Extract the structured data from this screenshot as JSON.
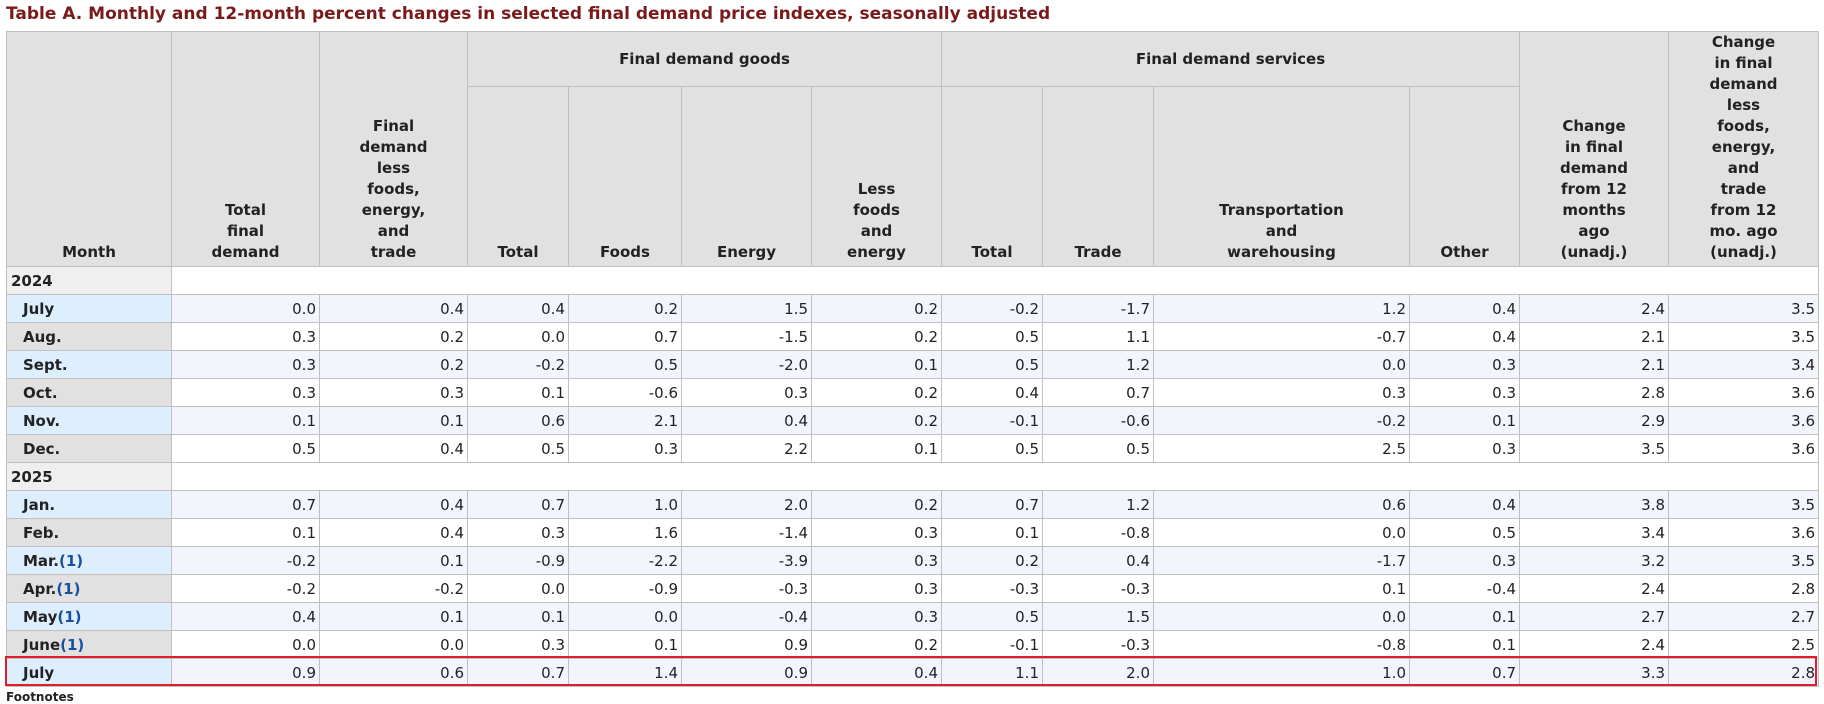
{
  "title": "Table A. Monthly and 12-month percent changes in selected final demand price indexes, seasonally adjusted",
  "headers": {
    "month": "Month",
    "total_final_demand": [
      "Total",
      "final",
      "demand"
    ],
    "fd_less": [
      "Final",
      "demand",
      "less",
      "foods,",
      "energy,",
      "and",
      "trade"
    ],
    "goods_group": "Final demand goods",
    "services_group": "Final demand services",
    "goods_total": "Total",
    "goods_foods": "Foods",
    "goods_energy": "Energy",
    "goods_less": [
      "Less",
      "foods",
      "and",
      "energy"
    ],
    "svc_total": "Total",
    "svc_trade": "Trade",
    "svc_transport": [
      "Transportation",
      "and",
      "warehousing"
    ],
    "svc_other": "Other",
    "change_12": [
      "Change",
      "in final",
      "demand",
      "from 12",
      "months",
      "ago",
      "(unadj.)"
    ],
    "change_less_12": [
      "Change",
      "in final",
      "demand",
      "less",
      "foods,",
      "energy,",
      "and",
      "trade",
      "from 12",
      "mo. ago",
      "(unadj.)"
    ]
  },
  "years": [
    "2024",
    "2025"
  ],
  "rows_2024": [
    {
      "month": "July",
      "fn": "",
      "v": [
        "0.0",
        "0.4",
        "0.4",
        "0.2",
        "1.5",
        "0.2",
        "-0.2",
        "-1.7",
        "1.2",
        "0.4",
        "2.4",
        "3.5"
      ]
    },
    {
      "month": "Aug.",
      "fn": "",
      "v": [
        "0.3",
        "0.2",
        "0.0",
        "0.7",
        "-1.5",
        "0.2",
        "0.5",
        "1.1",
        "-0.7",
        "0.4",
        "2.1",
        "3.5"
      ]
    },
    {
      "month": "Sept.",
      "fn": "",
      "v": [
        "0.3",
        "0.2",
        "-0.2",
        "0.5",
        "-2.0",
        "0.1",
        "0.5",
        "1.2",
        "0.0",
        "0.3",
        "2.1",
        "3.4"
      ]
    },
    {
      "month": "Oct.",
      "fn": "",
      "v": [
        "0.3",
        "0.3",
        "0.1",
        "-0.6",
        "0.3",
        "0.2",
        "0.4",
        "0.7",
        "0.3",
        "0.3",
        "2.8",
        "3.6"
      ]
    },
    {
      "month": "Nov.",
      "fn": "",
      "v": [
        "0.1",
        "0.1",
        "0.6",
        "2.1",
        "0.4",
        "0.2",
        "-0.1",
        "-0.6",
        "-0.2",
        "0.1",
        "2.9",
        "3.6"
      ]
    },
    {
      "month": "Dec.",
      "fn": "",
      "v": [
        "0.5",
        "0.4",
        "0.5",
        "0.3",
        "2.2",
        "0.1",
        "0.5",
        "0.5",
        "2.5",
        "0.3",
        "3.5",
        "3.6"
      ]
    }
  ],
  "rows_2025": [
    {
      "month": "Jan.",
      "fn": "",
      "v": [
        "0.7",
        "0.4",
        "0.7",
        "1.0",
        "2.0",
        "0.2",
        "0.7",
        "1.2",
        "0.6",
        "0.4",
        "3.8",
        "3.5"
      ]
    },
    {
      "month": "Feb.",
      "fn": "",
      "v": [
        "0.1",
        "0.4",
        "0.3",
        "1.6",
        "-1.4",
        "0.3",
        "0.1",
        "-0.8",
        "0.0",
        "0.5",
        "3.4",
        "3.6"
      ]
    },
    {
      "month": "Mar.",
      "fn": "(1)",
      "v": [
        "-0.2",
        "0.1",
        "-0.9",
        "-2.2",
        "-3.9",
        "0.3",
        "0.2",
        "0.4",
        "-1.7",
        "0.3",
        "3.2",
        "3.5"
      ]
    },
    {
      "month": "Apr.",
      "fn": "(1)",
      "v": [
        "-0.2",
        "-0.2",
        "0.0",
        "-0.9",
        "-0.3",
        "0.3",
        "-0.3",
        "-0.3",
        "0.1",
        "-0.4",
        "2.4",
        "2.8"
      ]
    },
    {
      "month": "May",
      "fn": "(1)",
      "v": [
        "0.4",
        "0.1",
        "0.1",
        "0.0",
        "-0.4",
        "0.3",
        "0.5",
        "1.5",
        "0.0",
        "0.1",
        "2.7",
        "2.7"
      ]
    },
    {
      "month": "June",
      "fn": "(1)",
      "v": [
        "0.0",
        "0.0",
        "0.3",
        "0.1",
        "0.9",
        "0.2",
        "-0.1",
        "-0.3",
        "-0.8",
        "0.1",
        "2.4",
        "2.5"
      ]
    },
    {
      "month": "July",
      "fn": "",
      "v": [
        "0.9",
        "0.6",
        "0.7",
        "1.4",
        "0.9",
        "0.4",
        "1.1",
        "2.0",
        "1.0",
        "0.7",
        "3.3",
        "2.8"
      ]
    }
  ],
  "footnote": "Footnotes",
  "highlight_color": "#e01b2a",
  "title_color": "#7a1a1a"
}
